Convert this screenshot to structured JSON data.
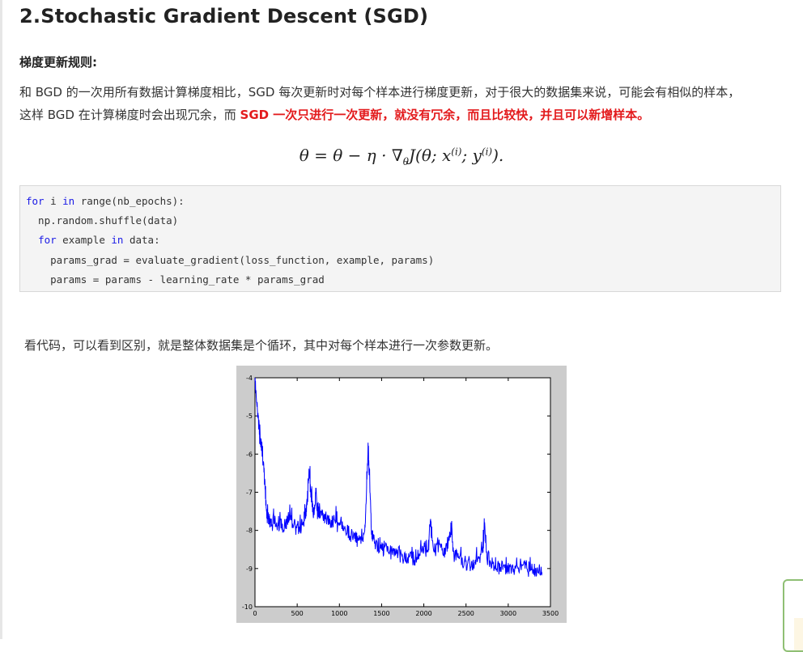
{
  "heading": "2.Stochastic Gradient Descent (SGD)",
  "subheading": "梯度更新规则:",
  "paragraph": {
    "line1": "和 BGD 的一次用所有数据计算梯度相比，SGD 每次更新时对每个样本进行梯度更新，对于很大的数据集来说，可能会有相似的样本，",
    "line2_plain": "这样 BGD 在计算梯度时会出现冗余，而 ",
    "line2_highlight": "SGD 一次只进行一次更新，就没有冗余，而且比较快，并且可以新增样本。"
  },
  "formula": {
    "lhs": "θ",
    "eq": " = ",
    "rhs_a": "θ − η · ∇",
    "sub": "θ",
    "rhs_b": "J(θ; x",
    "sup1": "(i)",
    "mid": "; y",
    "sup2": "(i)",
    "end": ")."
  },
  "code": {
    "line1": [
      {
        "t": "for",
        "kw": true
      },
      {
        "t": " i ",
        "kw": false
      },
      {
        "t": "in",
        "kw": true
      },
      {
        "t": " range(nb_epochs):",
        "kw": false
      }
    ],
    "line2": [
      {
        "t": "  np.random.shuffle(data)",
        "kw": false
      }
    ],
    "line3": [
      {
        "t": "  ",
        "kw": false
      },
      {
        "t": "for",
        "kw": true
      },
      {
        "t": " example ",
        "kw": false
      },
      {
        "t": "in",
        "kw": true
      },
      {
        "t": " data:",
        "kw": false
      }
    ],
    "line4": [
      {
        "t": "    params_grad = evaluate_gradient(loss_function, example, params)",
        "kw": false
      }
    ],
    "line5": [
      {
        "t": "    params = params - learning_rate * params_grad",
        "kw": false
      }
    ]
  },
  "paragraph2": "看代码，可以看到区别，就是整体数据集是个循环，其中对每个样本进行一次参数更新。",
  "chart_data": {
    "type": "line",
    "title": "",
    "xlabel": "",
    "ylabel": "",
    "xlim": [
      0,
      3500
    ],
    "ylim": [
      -10,
      -4
    ],
    "xticks": [
      0,
      500,
      1000,
      1500,
      2000,
      2500,
      3000,
      3500
    ],
    "yticks": [
      -4,
      -5,
      -6,
      -7,
      -8,
      -9,
      -10
    ],
    "line_color": "#0000ff",
    "series": [
      {
        "x": [
          0,
          20,
          40,
          60,
          80,
          100,
          120,
          140,
          160,
          180,
          200,
          230,
          260,
          300,
          340,
          380,
          420,
          460,
          500,
          540,
          580,
          600,
          620,
          640,
          660,
          680,
          700,
          720,
          740,
          760,
          800,
          850,
          900,
          950,
          1000,
          1050,
          1100,
          1150,
          1200,
          1250,
          1300,
          1320,
          1340,
          1360,
          1380,
          1400,
          1450,
          1500,
          1550,
          1600,
          1650,
          1700,
          1750,
          1800,
          1850,
          1900,
          1950,
          2000,
          2050,
          2080,
          2100,
          2150,
          2200,
          2250,
          2300,
          2330,
          2350,
          2400,
          2450,
          2500,
          2550,
          2600,
          2650,
          2700,
          2720,
          2750,
          2800,
          2850,
          2900,
          2950,
          3000,
          3050,
          3100,
          3150,
          3200,
          3250,
          3300,
          3350,
          3400
        ],
        "y": [
          -4.2,
          -4.6,
          -5.1,
          -5.6,
          -5.8,
          -6.3,
          -6.9,
          -7.6,
          -7.7,
          -7.8,
          -7.9,
          -7.6,
          -7.9,
          -7.8,
          -7.9,
          -7.8,
          -7.6,
          -7.9,
          -8.0,
          -7.9,
          -7.7,
          -7.6,
          -7.2,
          -6.4,
          -7.0,
          -7.4,
          -7.6,
          -6.9,
          -7.6,
          -7.5,
          -7.6,
          -7.7,
          -7.8,
          -7.8,
          -7.9,
          -7.9,
          -8.0,
          -8.1,
          -8.2,
          -8.2,
          -8.1,
          -7.0,
          -5.8,
          -6.8,
          -8.1,
          -8.2,
          -8.4,
          -8.5,
          -8.5,
          -8.6,
          -8.6,
          -8.6,
          -8.7,
          -8.7,
          -8.7,
          -8.8,
          -8.5,
          -8.4,
          -8.6,
          -7.7,
          -8.4,
          -8.5,
          -8.4,
          -8.6,
          -8.2,
          -7.9,
          -8.6,
          -8.7,
          -8.8,
          -8.9,
          -8.9,
          -8.9,
          -8.8,
          -8.5,
          -7.9,
          -8.7,
          -8.9,
          -8.9,
          -9.0,
          -9.0,
          -9.0,
          -9.0,
          -9.0,
          -9.0,
          -9.0,
          -9.05,
          -9.05,
          -9.1,
          -9.1
        ]
      }
    ]
  }
}
